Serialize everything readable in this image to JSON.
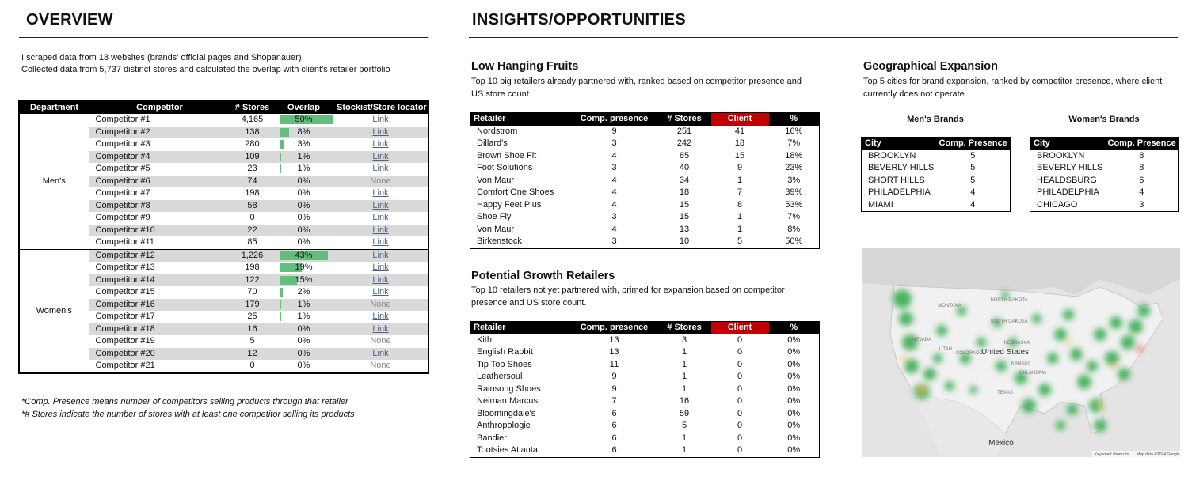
{
  "overview": {
    "title": "OVERVIEW",
    "intro": [
      "I scraped data from 18 websites (brands' official pages and Shopanauer)",
      "Collected data from 5,737 distinct stores and calculated the overlap with client's retailer portfolio"
    ],
    "table": {
      "headers": [
        "Department",
        "Competitor",
        "# Stores",
        "Overlap",
        "Stockist/Store locator"
      ],
      "groups": [
        {
          "department": "Men's",
          "rows": [
            [
              "Competitor #1",
              "4,165",
              "50%",
              "Link"
            ],
            [
              "Competitor #2",
              "138",
              "8%",
              "Link"
            ],
            [
              "Competitor #3",
              "280",
              "3%",
              "Link"
            ],
            [
              "Competitor #4",
              "109",
              "1%",
              "Link"
            ],
            [
              "Competitor #5",
              "23",
              "1%",
              "Link"
            ],
            [
              "Competitor #6",
              "74",
              "0%",
              "None"
            ],
            [
              "Competitor #7",
              "198",
              "0%",
              "Link"
            ],
            [
              "Competitor #8",
              "58",
              "0%",
              "Link"
            ],
            [
              "Competitor #9",
              "0",
              "0%",
              "Link"
            ],
            [
              "Competitor #10",
              "22",
              "0%",
              "Link"
            ],
            [
              "Competitor #11",
              "85",
              "0%",
              "Link"
            ]
          ]
        },
        {
          "department": "Women's",
          "rows": [
            [
              "Competitor #12",
              "1,226",
              "43%",
              "Link"
            ],
            [
              "Competitor #13",
              "198",
              "19%",
              "Link"
            ],
            [
              "Competitor #14",
              "122",
              "15%",
              "Link"
            ],
            [
              "Competitor #15",
              "70",
              "2%",
              "Link"
            ],
            [
              "Competitor #16",
              "179",
              "1%",
              "None"
            ],
            [
              "Competitor #17",
              "25",
              "1%",
              "Link"
            ],
            [
              "Competitor #18",
              "16",
              "0%",
              "Link"
            ],
            [
              "Competitor #19",
              "5",
              "0%",
              "None"
            ],
            [
              "Competitor #20",
              "12",
              "0%",
              "Link"
            ],
            [
              "Competitor #21",
              "0",
              "0%",
              "None"
            ]
          ]
        }
      ]
    },
    "notes": [
      "*Comp. Presence means number of competitors selling products through that retailer",
      "*# Stores indicate the number of stores with at least one competitor selling its products"
    ]
  },
  "insights": {
    "title": "INSIGHTS/OPPORTUNITIES",
    "low_hanging": {
      "title": "Low Hanging Fruits",
      "description": [
        "Top 10 big retailers already partnered with, ranked based on competitor presence and",
        "US store count"
      ],
      "headers": [
        "Retailer",
        "Comp. presence",
        "# Stores",
        "Client",
        "%"
      ],
      "rows": [
        [
          "Nordstrom",
          "9",
          "251",
          "41",
          "16%"
        ],
        [
          "Dillard's",
          "3",
          "242",
          "18",
          "7%"
        ],
        [
          "Brown Shoe Fit",
          "4",
          "85",
          "15",
          "18%"
        ],
        [
          "Foot Solutions",
          "3",
          "40",
          "9",
          "23%"
        ],
        [
          "Von Maur",
          "4",
          "34",
          "1",
          "3%"
        ],
        [
          "Comfort One Shoes",
          "4",
          "18",
          "7",
          "39%"
        ],
        [
          "Happy Feet Plus",
          "4",
          "15",
          "8",
          "53%"
        ],
        [
          "Shoe Fly",
          "3",
          "15",
          "1",
          "7%"
        ],
        [
          "Von Maur",
          "4",
          "13",
          "1",
          "8%"
        ],
        [
          "Birkenstock",
          "3",
          "10",
          "5",
          "50%"
        ]
      ]
    },
    "potential": {
      "title": "Potential Growth Retailers",
      "description": [
        "Top 10 retailers not yet partnered with, primed for expansion based on competitor",
        "presence and US store count."
      ],
      "headers": [
        "Retailer",
        "Comp. presence",
        "# Stores",
        "Client",
        "%"
      ],
      "rows": [
        [
          "Kith",
          "13",
          "3",
          "0",
          "0%"
        ],
        [
          "English Rabbit",
          "13",
          "1",
          "0",
          "0%"
        ],
        [
          "Tip Top Shoes",
          "11",
          "1",
          "0",
          "0%"
        ],
        [
          "Leathersoul",
          "9",
          "1",
          "0",
          "0%"
        ],
        [
          "Rainsong Shoes",
          "9",
          "1",
          "0",
          "0%"
        ],
        [
          "Neiman Marcus",
          "7",
          "16",
          "0",
          "0%"
        ],
        [
          "Bloomingdale's",
          "6",
          "59",
          "0",
          "0%"
        ],
        [
          "Anthropologie",
          "6",
          "5",
          "0",
          "0%"
        ],
        [
          "Bandier",
          "6",
          "1",
          "0",
          "0%"
        ],
        [
          "Tootsies Atlanta",
          "6",
          "1",
          "0",
          "0%"
        ]
      ]
    },
    "geo": {
      "title": "Geographical Expansion",
      "description": [
        "Top 5 cities for brand expansion, ranked by competitor presence, where client",
        "currently does not operate"
      ],
      "mens": {
        "title": "Men's Brands",
        "headers": [
          "City",
          "Comp. Presence"
        ],
        "rows": [
          [
            "BROOKLYN",
            "5"
          ],
          [
            "BEVERLY HILLS",
            "5"
          ],
          [
            "SHORT HILLS",
            "5"
          ],
          [
            "PHILADELPHIA",
            "4"
          ],
          [
            "MIAMI",
            "4"
          ]
        ]
      },
      "womens": {
        "title": "Women's Brands",
        "headers": [
          "City",
          "Comp. Presence"
        ],
        "rows": [
          [
            "BROOKLYN",
            "8"
          ],
          [
            "BEVERLY HILLS",
            "8"
          ],
          [
            "HEALDSBURG",
            "6"
          ],
          [
            "PHILADELPHIA",
            "4"
          ],
          [
            "CHICAGO",
            "3"
          ]
        ]
      },
      "map_labels": [
        "MONTANA",
        "NORTH DAKOTA",
        "SOUTH DAKOTA",
        "NEBRASKA",
        "KANSAS",
        "NEVADA",
        "UTAH",
        "COLORADO",
        "TEXAS",
        "OKLAHOMA",
        "United States",
        "Mexico"
      ],
      "map_footer": [
        "Keyboard shortcuts",
        "Map data ©2024 Google"
      ]
    }
  }
}
